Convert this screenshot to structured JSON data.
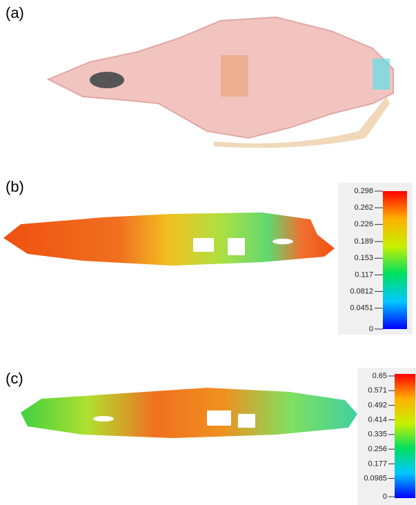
{
  "panels": [
    {
      "label": "(a)"
    },
    {
      "label": "(b)",
      "colorbar_ticks": [
        0.298,
        0.262,
        0.226,
        0.189,
        0.153,
        0.117,
        0.0812,
        0.0451,
        0
      ]
    },
    {
      "label": "(c)",
      "colorbar_ticks": [
        0.65,
        0.571,
        0.492,
        0.414,
        0.335,
        0.256,
        0.177,
        0.0985,
        0
      ]
    }
  ]
}
